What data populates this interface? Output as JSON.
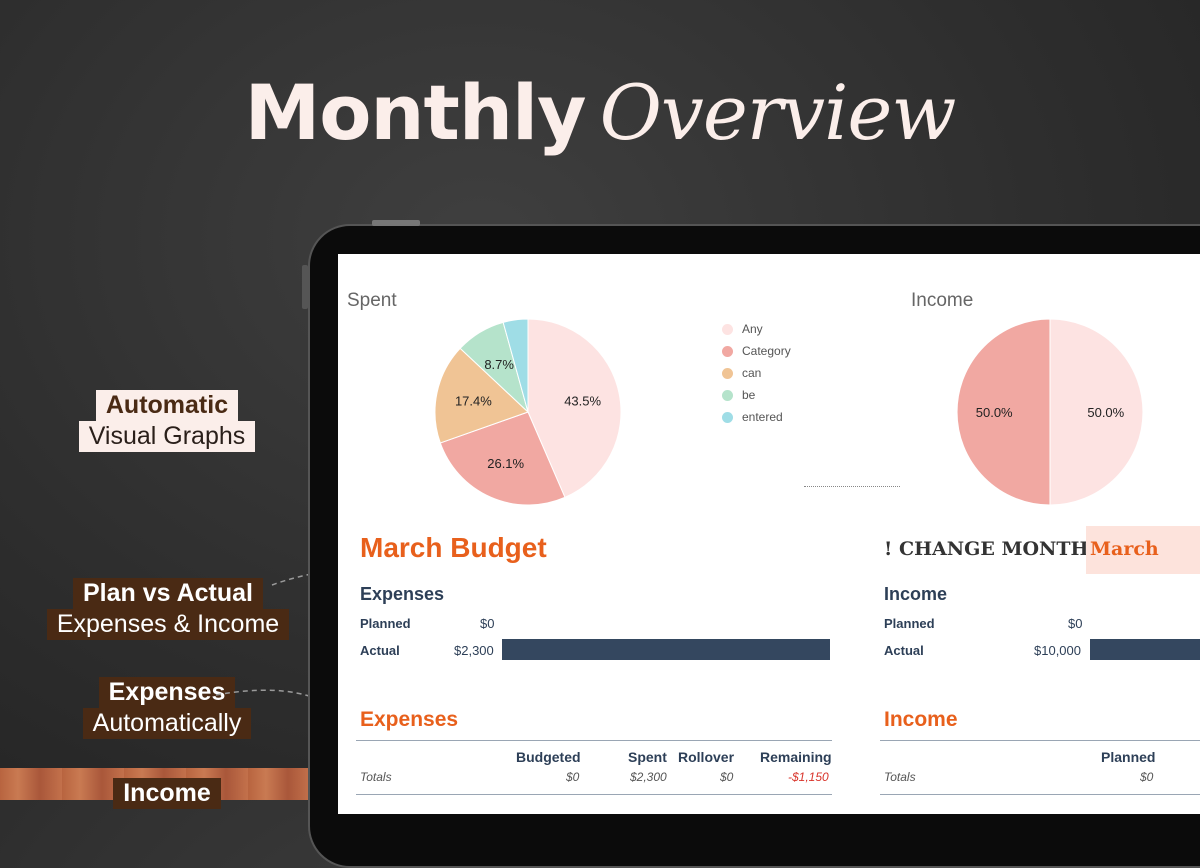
{
  "headline": {
    "plain": "Monthly",
    "fancy": "Overview"
  },
  "features": [
    {
      "bold": "Automatic",
      "regular": "Visual Graphs"
    },
    {
      "bold": "Plan vs Actual",
      "regular": "Expenses & Income"
    },
    {
      "bold": "Expenses",
      "regular": "Automatically"
    },
    {
      "bold": "Income",
      "regular": ""
    }
  ],
  "charts": {
    "spent_title": "Spent",
    "income_title": "Income"
  },
  "chart_data": [
    {
      "type": "pie",
      "title": "Spent",
      "categories": [
        "Any",
        "Category",
        "can",
        "be",
        "entered"
      ],
      "values": [
        43.5,
        26.1,
        17.4,
        8.7,
        4.3
      ],
      "labels": [
        "43.5%",
        "26.1%",
        "17.4%",
        "8.7%",
        ""
      ],
      "colors": [
        "#fde3e2",
        "#f1a8a2",
        "#f0c495",
        "#b5e3cb",
        "#9fdde6"
      ],
      "legend": "right"
    },
    {
      "type": "pie",
      "title": "Income",
      "categories": [
        "",
        ""
      ],
      "values": [
        50.0,
        50.0
      ],
      "labels": [
        "50.0%",
        "50.0%"
      ],
      "colors": [
        "#fde3e2",
        "#f1a8a2"
      ]
    }
  ],
  "budget": {
    "title": "March Budget",
    "change_month_label": "! CHANGE MONTH:",
    "month_value": "March",
    "expenses_summary": {
      "heading": "Expenses",
      "planned_label": "Planned",
      "planned_value": "$0",
      "planned_fraction": 0,
      "actual_label": "Actual",
      "actual_value": "$2,300",
      "actual_fraction": 1
    },
    "income_summary": {
      "heading": "Income",
      "planned_label": "Planned",
      "planned_value": "$0",
      "planned_fraction": 0,
      "actual_label": "Actual",
      "actual_value": "$10,000",
      "actual_fraction": 1
    }
  },
  "expenses_table": {
    "heading": "Expenses",
    "columns": [
      "Budgeted",
      "Spent",
      "Rollover",
      "Remaining"
    ],
    "totals_label": "Totals",
    "totals": [
      "$0",
      "$2,300",
      "$0",
      "-$1,150"
    ]
  },
  "income_table": {
    "heading": "Income",
    "columns": [
      "Planned"
    ],
    "totals_label": "Totals",
    "totals": [
      "$0"
    ]
  },
  "colors": {
    "accent": "#e8601c",
    "navy": "#2d3f57",
    "bar": "#34475f",
    "negative": "#d9342b"
  }
}
